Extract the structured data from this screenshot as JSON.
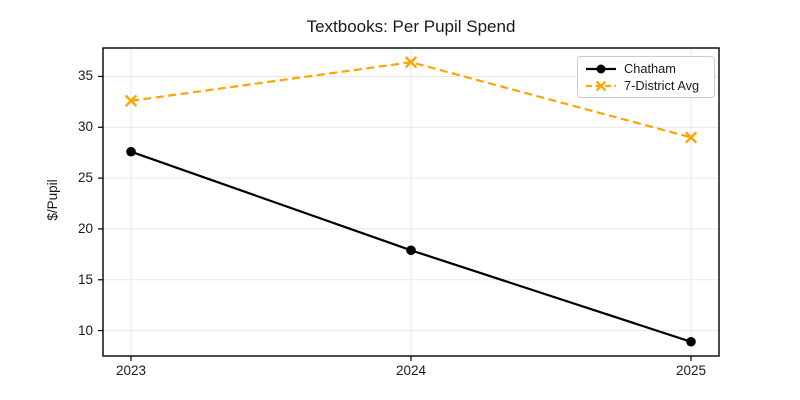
{
  "chart_data": {
    "type": "line",
    "title": "Textbooks: Per Pupil Spend",
    "xlabel": "",
    "ylabel": "$/Pupil",
    "x": [
      2023,
      2024,
      2025
    ],
    "xtick_labels": [
      "2023",
      "2024",
      "2025"
    ],
    "yticks": [
      10,
      15,
      20,
      25,
      30,
      35
    ],
    "xlim": [
      2022.9,
      2025.1
    ],
    "ylim": [
      7.5,
      37.8
    ],
    "grid": true,
    "legend_position": "upper right",
    "series": [
      {
        "name": "Chatham",
        "values": [
          27.6,
          17.9,
          8.9
        ],
        "color": "#000000",
        "line_style": "solid",
        "marker": "circle"
      },
      {
        "name": "7-District Avg",
        "values": [
          32.6,
          36.4,
          29.0
        ],
        "color": "#FFA500",
        "line_style": "dashed",
        "marker": "x"
      }
    ],
    "colors": {
      "grid": "#e7e7e7",
      "spine": "#000000",
      "text": "#1a1a1a",
      "legend_border": "#cccccc",
      "background": "#ffffff"
    }
  }
}
